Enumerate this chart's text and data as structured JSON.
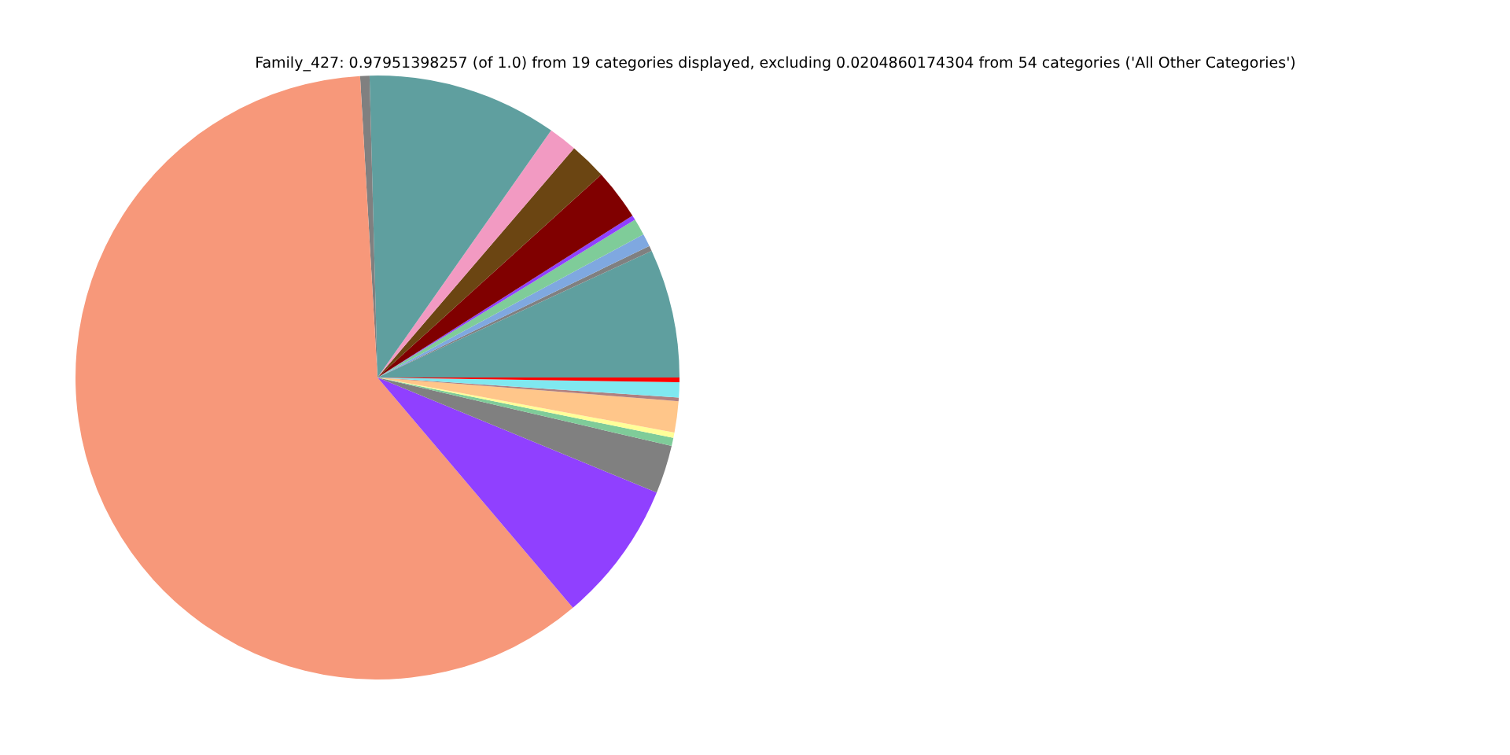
{
  "chart_data": {
    "type": "pie",
    "title": "Family_427: 0.97951398257 (of 1.0) from 19 categories displayed, excluding 0.0204860174304 from 54 categories ('All Other Categories')",
    "categories": [
      null,
      null,
      null,
      null,
      null,
      null,
      null,
      null,
      null,
      null,
      null,
      null,
      null,
      null,
      null,
      null,
      null,
      null,
      null
    ],
    "values": [
      6.89,
      0.28,
      0.69,
      0.89,
      0.25,
      2.72,
      2,
      1.53,
      10.17,
      0.5,
      60.28,
      7.58,
      2.58,
      0.44,
      0.28,
      1.67,
      0.19,
      0.81,
      0.25
    ],
    "colors": [
      "#5f9f9f",
      "#808080",
      "#7fa8e0",
      "#7fcc99",
      "#9040ff",
      "#800000",
      "#6b4512",
      "#f29ac2",
      "#5f9f9f",
      "#808080",
      "#f7987a",
      "#9040ff",
      "#808080",
      "#7fcc99",
      "#ffff99",
      "#ffc68a",
      "#b08080",
      "#7fe8f0",
      "#ff0000"
    ]
  }
}
